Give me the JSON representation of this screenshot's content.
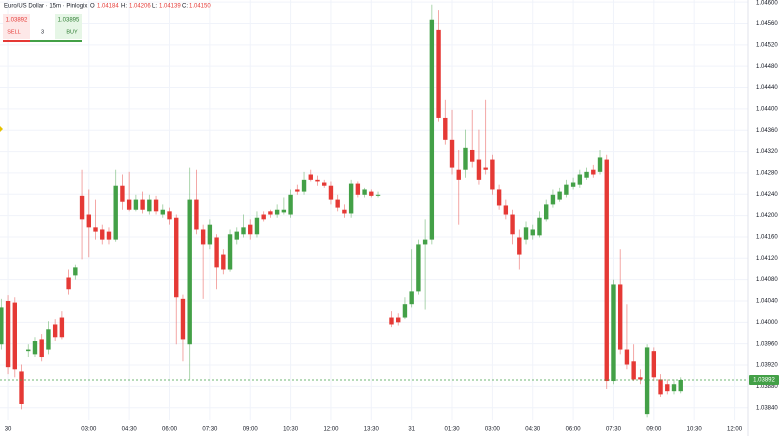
{
  "header": {
    "title": "Euro/US Dollar · 15m · Pinlogix",
    "ohlc": [
      {
        "key": "O",
        "value": "1.04184"
      },
      {
        "key": "H:",
        "value": "1.04206"
      },
      {
        "key": "L:",
        "value": "1.04139"
      },
      {
        "key": "C:",
        "value": "1.04150"
      }
    ]
  },
  "trade_panel": {
    "sell_price": "1.03892",
    "sell_label": "SELL",
    "spread": "3",
    "buy_price": "1.03895",
    "buy_label": "BUY"
  },
  "chart_data": {
    "type": "candlestick",
    "x": [
      -1,
      0,
      1,
      2,
      3,
      4,
      5,
      6,
      7,
      8,
      9,
      10,
      11,
      12,
      13,
      14,
      15,
      16,
      17,
      18,
      19,
      20,
      21,
      22,
      23,
      24,
      25,
      26,
      27,
      28,
      29,
      30,
      31,
      32,
      33,
      34,
      35,
      36,
      37,
      38,
      39,
      40,
      41,
      42,
      43,
      44,
      45,
      46,
      47,
      48,
      49,
      50,
      51,
      52,
      53,
      54,
      55,
      57,
      58,
      59,
      60,
      61,
      62,
      63,
      64,
      65,
      66,
      67,
      68,
      69,
      70,
      71,
      72,
      73,
      74,
      75,
      76,
      77,
      78,
      79,
      80,
      81,
      82,
      83,
      84,
      85,
      86,
      87,
      88,
      89,
      90,
      91,
      92,
      93,
      94,
      95,
      96,
      97,
      98,
      99,
      100
    ],
    "open": [
      1.03959,
      1.0404,
      1.04037,
      1.03908,
      1.03946,
      1.0394,
      1.03968,
      1.03949,
      1.03996,
      1.04009,
      1.04084,
      1.04088,
      1.04237,
      1.04202,
      1.04178,
      1.04174,
      1.0417,
      1.04155,
      1.04256,
      1.0423,
      1.04211,
      1.0423,
      1.04208,
      1.0423,
      1.04202,
      1.04208,
      1.04196,
      1.04044,
      1.03959,
      1.0423,
      1.04174,
      1.04146,
      1.04159,
      1.04127,
      1.04099,
      1.04155,
      1.04165,
      1.04183,
      1.04165,
      1.04202,
      1.04208,
      1.04202,
      1.04206,
      1.04202,
      1.04249,
      1.04245,
      1.04277,
      1.04267,
      1.04262,
      1.04256,
      1.0423,
      1.04211,
      1.04204,
      1.0426,
      1.04239,
      1.04245,
      1.04237,
      1.04009,
      1.04009,
      1.04009,
      1.04034,
      1.04058,
      1.04146,
      1.04155,
      1.04548,
      1.04383,
      1.04342,
      1.04286,
      1.04286,
      1.04323,
      1.04305,
      1.0429,
      1.04305,
      1.04249,
      1.04219,
      1.04202,
      1.04159,
      1.04155,
      1.04163,
      1.04163,
      1.04193,
      1.04221,
      1.0423,
      1.04239,
      1.04254,
      1.04258,
      1.04271,
      1.04286,
      1.04282,
      1.04305,
      1.0389,
      1.04071,
      1.03949,
      1.03927,
      1.03897,
      1.03828,
      1.03946,
      1.03893,
      1.03884,
      1.03871,
      1.03871
    ],
    "high": [
      1.04044,
      1.04051,
      1.04047,
      1.03921,
      1.03959,
      1.03972,
      1.03978,
      1.04002,
      1.04006,
      1.04021,
      1.04099,
      1.04108,
      1.04286,
      1.04249,
      1.0423,
      1.04183,
      1.04178,
      1.04286,
      1.04277,
      1.04282,
      1.04239,
      1.04245,
      1.04239,
      1.04237,
      1.04221,
      1.04215,
      1.04202,
      1.04052,
      1.0429,
      1.04286,
      1.04183,
      1.04193,
      1.04165,
      1.04137,
      1.04174,
      1.04178,
      1.04202,
      1.04193,
      1.04208,
      1.04208,
      1.04211,
      1.04221,
      1.04234,
      1.04249,
      1.04258,
      1.04282,
      1.04286,
      1.04275,
      1.04267,
      1.04264,
      1.04239,
      1.04221,
      1.04267,
      1.04264,
      1.04252,
      1.04249,
      1.04245,
      1.04021,
      1.04017,
      1.04047,
      1.04137,
      1.04155,
      1.04193,
      1.04595,
      1.04585,
      1.04417,
      1.04398,
      1.04323,
      1.04361,
      1.04398,
      1.04361,
      1.04417,
      1.04314,
      1.04258,
      1.0423,
      1.04211,
      1.04174,
      1.04189,
      1.04183,
      1.04208,
      1.0423,
      1.04249,
      1.04252,
      1.04267,
      1.04271,
      1.04286,
      1.0429,
      1.04295,
      1.04323,
      1.04314,
      1.0408,
      1.04137,
      1.04034,
      1.03959,
      1.03912,
      1.03959,
      1.03953,
      1.03903,
      1.03893,
      1.03893,
      1.03897
    ],
    "low": [
      1.03949,
      1.03903,
      1.03897,
      1.03837,
      1.03935,
      1.03935,
      1.03927,
      1.0394,
      1.03965,
      1.03968,
      1.04052,
      1.0408,
      1.04118,
      1.04122,
      1.04155,
      1.04146,
      1.04146,
      1.04151,
      1.04211,
      1.04208,
      1.04208,
      1.04204,
      1.04202,
      1.04202,
      1.04196,
      1.04183,
      1.03959,
      1.03927,
      1.03893,
      1.04165,
      1.04044,
      1.04137,
      1.04062,
      1.0409,
      1.04095,
      1.04146,
      1.04159,
      1.04155,
      1.04159,
      1.04189,
      1.04196,
      1.04196,
      1.04202,
      1.04196,
      1.04239,
      1.04239,
      1.04264,
      1.04256,
      1.04252,
      1.04221,
      1.04208,
      1.04196,
      1.04196,
      1.04234,
      1.04234,
      1.04234,
      1.04234,
      1.03991,
      1.03994,
      1.04006,
      1.04028,
      1.04052,
      1.04024,
      1.04146,
      1.04376,
      1.04333,
      1.04277,
      1.04183,
      1.04271,
      1.0429,
      1.04258,
      1.04277,
      1.04239,
      1.04211,
      1.04193,
      1.04146,
      1.04099,
      1.04146,
      1.04155,
      1.04159,
      1.04189,
      1.04215,
      1.04226,
      1.04234,
      1.04249,
      1.04252,
      1.04267,
      1.04271,
      1.04277,
      1.03875,
      1.03884,
      1.0394,
      1.03912,
      1.0389,
      1.03884,
      1.03822,
      1.0389,
      1.0386,
      1.03865,
      1.03865,
      1.03867
    ],
    "close": [
      1.04028,
      1.03916,
      1.03912,
      1.03847,
      1.03949,
      1.03965,
      1.03935,
      1.03987,
      1.03972,
      1.03972,
      1.04062,
      1.04103,
      1.04193,
      1.04178,
      1.0417,
      1.04155,
      1.04155,
      1.04256,
      1.04226,
      1.04211,
      1.0423,
      1.04211,
      1.0423,
      1.04208,
      1.04211,
      1.04193,
      1.04047,
      1.03968,
      1.0423,
      1.04174,
      1.04146,
      1.04183,
      1.04103,
      1.04099,
      1.04165,
      1.0417,
      1.04178,
      1.04165,
      1.04196,
      1.04193,
      1.04202,
      1.04211,
      1.04211,
      1.04239,
      1.04245,
      1.04267,
      1.04267,
      1.04264,
      1.04256,
      1.0423,
      1.04215,
      1.04204,
      1.0426,
      1.04239,
      1.04249,
      1.04237,
      1.04239,
      1.03996,
      1.04,
      1.04034,
      1.04058,
      1.04146,
      1.04155,
      1.04567,
      1.04383,
      1.04342,
      1.0429,
      1.04267,
      1.04327,
      1.04301,
      1.04267,
      1.04286,
      1.04249,
      1.04219,
      1.04202,
      1.04165,
      1.04127,
      1.04178,
      1.04174,
      1.04196,
      1.04221,
      1.04239,
      1.04245,
      1.04258,
      1.04262,
      1.04277,
      1.04282,
      1.04277,
      1.04309,
      1.0389,
      1.04071,
      1.03949,
      1.03921,
      1.03893,
      1.03893,
      1.03953,
      1.03897,
      1.03865,
      1.03871,
      1.03884,
      1.03892
    ],
    "up_color": "#43a047",
    "down_color": "#e53935",
    "last_price": 1.03892,
    "xlim": [
      -1.2,
      110
    ],
    "ylim": [
      1.03817,
      1.04604
    ],
    "yticks": [
      {
        "value": 1.046,
        "label": "1.04600"
      },
      {
        "value": 1.0456,
        "label": "1.04560"
      },
      {
        "value": 1.0452,
        "label": "1.04520"
      },
      {
        "value": 1.0448,
        "label": "1.04480"
      },
      {
        "value": 1.0444,
        "label": "1.04440"
      },
      {
        "value": 1.044,
        "label": "1.04400"
      },
      {
        "value": 1.0436,
        "label": "1.04360"
      },
      {
        "value": 1.0432,
        "label": "1.04320"
      },
      {
        "value": 1.0428,
        "label": "1.04280"
      },
      {
        "value": 1.0424,
        "label": "1.04240"
      },
      {
        "value": 1.042,
        "label": "1.04200"
      },
      {
        "value": 1.0416,
        "label": "1.04160"
      },
      {
        "value": 1.0412,
        "label": "1.04120"
      },
      {
        "value": 1.0408,
        "label": "1.04080"
      },
      {
        "value": 1.0404,
        "label": "1.04040"
      },
      {
        "value": 1.04,
        "label": "1.04000"
      },
      {
        "value": 1.0396,
        "label": "1.03960"
      },
      {
        "value": 1.0392,
        "label": "1.03920"
      },
      {
        "value": 1.0388,
        "label": "1.03880"
      },
      {
        "value": 1.0384,
        "label": "1.03840"
      }
    ],
    "xticks": [
      {
        "value": 0,
        "label": "30"
      },
      {
        "value": 12,
        "label": "03:00"
      },
      {
        "value": 18,
        "label": "04:30"
      },
      {
        "value": 24,
        "label": "06:00"
      },
      {
        "value": 30,
        "label": "07:30"
      },
      {
        "value": 36,
        "label": "09:00"
      },
      {
        "value": 42,
        "label": "10:30"
      },
      {
        "value": 48,
        "label": "12:00"
      },
      {
        "value": 54,
        "label": "13:30"
      },
      {
        "value": 60,
        "label": "31"
      },
      {
        "value": 66,
        "label": "01:30"
      },
      {
        "value": 72,
        "label": "03:00"
      },
      {
        "value": 78,
        "label": "04:30"
      },
      {
        "value": 84,
        "label": "06:00"
      },
      {
        "value": 90,
        "label": "07:30"
      },
      {
        "value": 96,
        "label": "09:00"
      },
      {
        "value": 102,
        "label": "10:30"
      },
      {
        "value": 108,
        "label": "12:00"
      }
    ],
    "grid": true
  }
}
